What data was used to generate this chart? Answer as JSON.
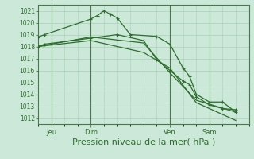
{
  "bg_color": "#cce8d8",
  "grid_color": "#aacfba",
  "line_color": "#2d6e2d",
  "xlabel": "Pression niveau de la mer( hPa )",
  "xlabel_fontsize": 8,
  "ylim": [
    1011.5,
    1021.5
  ],
  "yticks": [
    1012,
    1013,
    1014,
    1015,
    1016,
    1017,
    1018,
    1019,
    1020,
    1021
  ],
  "xlim": [
    0,
    96
  ],
  "xtick_labels": [
    "Jeu",
    "Dim",
    "Ven",
    "Sam"
  ],
  "xtick_positions": [
    6,
    24,
    60,
    78
  ],
  "vline_positions": [
    6,
    24,
    60,
    78
  ],
  "series1_markers": {
    "x": [
      0,
      3,
      24,
      27,
      30,
      33,
      36,
      42,
      54,
      60,
      66,
      69,
      72,
      78,
      84,
      90
    ],
    "y": [
      1018.8,
      1019.0,
      1020.3,
      1020.6,
      1021.0,
      1020.7,
      1020.4,
      1019.0,
      1018.85,
      1018.2,
      1016.2,
      1015.5,
      1014.0,
      1013.35,
      1013.35,
      1012.5
    ]
  },
  "series2_markers": {
    "x": [
      0,
      3,
      24,
      36,
      48,
      54,
      60,
      66,
      69,
      72,
      78,
      84,
      90
    ],
    "y": [
      1018.0,
      1018.2,
      1018.7,
      1019.0,
      1018.5,
      1016.9,
      1016.0,
      1015.1,
      1014.8,
      1013.8,
      1013.1,
      1012.8,
      1012.7
    ]
  },
  "series3_smooth": {
    "x": [
      0,
      24,
      48,
      60,
      72,
      90
    ],
    "y": [
      1018.0,
      1018.8,
      1018.3,
      1015.8,
      1013.5,
      1012.5
    ]
  },
  "series4_smooth": {
    "x": [
      0,
      24,
      48,
      60,
      72,
      90
    ],
    "y": [
      1018.0,
      1018.5,
      1017.5,
      1016.2,
      1013.3,
      1011.8
    ]
  }
}
